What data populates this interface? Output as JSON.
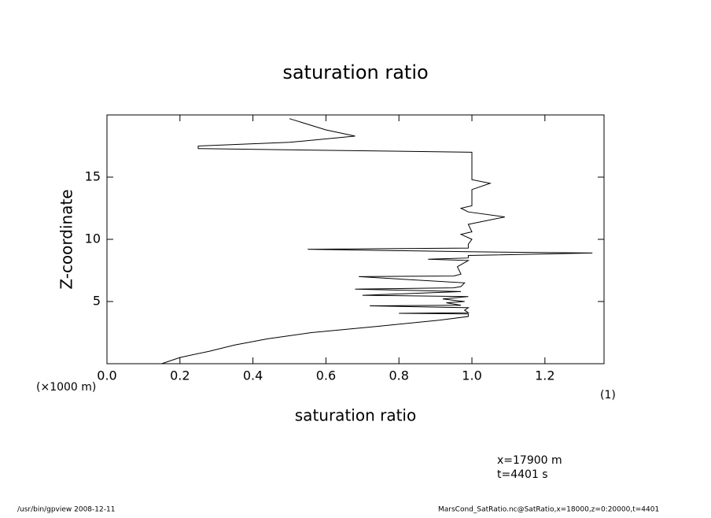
{
  "chart_data": {
    "type": "line",
    "title": "saturation ratio",
    "x_label": "saturation ratio",
    "y_label": "Z-coordinate",
    "y_unit": "(×1000 m)",
    "x_unit": "(1)",
    "annotations": [
      "x=17900  m",
      "t=4401  s"
    ],
    "footer_left": "/usr/bin/gpview   2008-12-11",
    "footer_right": "MarsCond_SatRatio.nc@SatRatio,x=18000,z=0:20000,t=4401",
    "color": "#000000",
    "x": [
      0.15,
      0.2,
      0.28,
      0.35,
      0.44,
      0.56,
      0.74,
      0.91,
      0.99,
      0.99,
      0.8,
      0.99,
      0.98,
      0.99,
      0.72,
      0.97,
      0.93,
      0.98,
      0.92,
      0.99,
      0.7,
      0.97,
      0.68,
      0.95,
      0.97,
      0.98,
      0.69,
      0.95,
      0.97,
      0.96,
      0.99,
      0.88,
      0.99,
      0.99,
      1.33,
      0.99,
      0.55,
      0.99,
      0.99,
      1.0,
      0.97,
      1.0,
      0.99,
      1.09,
      0.99,
      0.97,
      1.0,
      1.0,
      1.0,
      1.05,
      1.0,
      1.0,
      1.0,
      0.25,
      0.25,
      0.5,
      0.68,
      0.6,
      0.5
    ],
    "values": [
      0,
      0.5,
      1,
      1.5,
      2,
      2.5,
      3,
      3.5,
      3.8,
      4.0,
      4.05,
      4.1,
      4.3,
      4.5,
      4.65,
      4.7,
      4.9,
      5.0,
      5.2,
      5.4,
      5.5,
      5.8,
      6.0,
      6.1,
      6.2,
      6.5,
      7.0,
      7.05,
      7.2,
      7.8,
      8.3,
      8.4,
      8.5,
      8.7,
      8.9,
      9.0,
      9.2,
      9.3,
      9.6,
      10.0,
      10.4,
      10.6,
      11.2,
      11.8,
      12.2,
      12.5,
      12.7,
      13.2,
      14.0,
      14.5,
      14.8,
      16.0,
      17.0,
      17.3,
      17.5,
      17.8,
      18.3,
      18.8,
      19.7
    ],
    "xlim": [
      0,
      1.362
    ],
    "ylim": [
      0,
      20
    ],
    "xticks": [
      {
        "value": 0,
        "label": "0.0"
      },
      0.2,
      0.4,
      0.6,
      0.8,
      {
        "value": 1,
        "label": "1.0"
      },
      1.2
    ],
    "yticks": [
      5,
      10,
      15
    ]
  }
}
